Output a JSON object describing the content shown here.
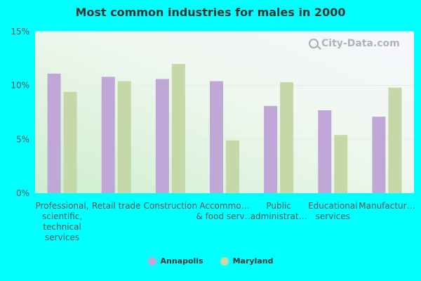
{
  "chart_data": {
    "type": "bar",
    "title": "Most common industries for males in 2000",
    "categories": [
      [
        "Professional,",
        "scientific,",
        "technical",
        "services"
      ],
      [
        "Retail trade"
      ],
      [
        "Construction"
      ],
      [
        "Accommo…",
        "& food serv…"
      ],
      [
        "Public",
        "administrat…"
      ],
      [
        "Educational",
        "services"
      ],
      [
        "Manufactur…"
      ]
    ],
    "series": [
      {
        "name": "Annapolis",
        "color": "#bfa8d8",
        "values": [
          11.1,
          10.8,
          10.6,
          10.4,
          8.1,
          7.7,
          7.1
        ]
      },
      {
        "name": "Maryland",
        "color": "#c4d8a8",
        "values": [
          9.4,
          10.4,
          12.0,
          4.9,
          10.3,
          5.4,
          9.8
        ]
      }
    ],
    "ylim": [
      0,
      15
    ],
    "yticks": [
      0,
      5,
      10,
      15
    ],
    "ytick_labels": [
      "0%",
      "5%",
      "10%",
      "15%"
    ],
    "grid": true,
    "legend_position": "bottom-center"
  },
  "watermark": {
    "text": "City-Data.com",
    "icon": "search-icon"
  }
}
